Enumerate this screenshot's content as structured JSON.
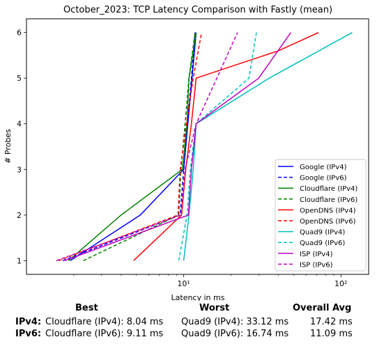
{
  "chart_data": {
    "type": "line",
    "title": "October_2023: TCP Latency Comparison with Fastly (mean)",
    "xlabel": "Latency in ms",
    "ylabel": "# Probes",
    "xscale": "log",
    "xlim": [
      1,
      150
    ],
    "ylim": [
      0.7,
      6.3
    ],
    "x_ticks": [
      {
        "value": 10,
        "label": "10¹"
      },
      {
        "value": 100,
        "label": "10²"
      }
    ],
    "y_ticks": [
      1,
      2,
      3,
      4,
      5,
      6
    ],
    "legend_position": "lower-right",
    "series": [
      {
        "name": "Google (IPv4)",
        "color": "#0000ff",
        "dash": "solid",
        "x": [
          1.9,
          5.3,
          10.0,
          11.3,
          12.0
        ],
        "y": [
          1,
          2,
          3,
          5,
          6
        ]
      },
      {
        "name": "Google (IPv6)",
        "color": "#0000ff",
        "dash": "dashed",
        "x": [
          1.7,
          9.5,
          10.0,
          11.2,
          11.8
        ],
        "y": [
          1,
          2,
          3,
          5,
          6
        ]
      },
      {
        "name": "Cloudflare (IPv4)",
        "color": "#008000",
        "dash": "solid",
        "x": [
          1.85,
          4.0,
          9.8,
          10.5,
          10.8,
          12.0
        ],
        "y": [
          1,
          2,
          3,
          4,
          5,
          6
        ]
      },
      {
        "name": "Cloudflare (IPv6)",
        "color": "#008000",
        "dash": "dashed",
        "x": [
          2.3,
          9.3,
          9.6,
          10.2,
          10.8,
          11.8
        ],
        "y": [
          1,
          2,
          3,
          4,
          5,
          6
        ]
      },
      {
        "name": "OpenDNS (IPv4)",
        "color": "#ff0000",
        "dash": "solid",
        "x": [
          4.8,
          9.7,
          10.3,
          11.2,
          12.0,
          40.0,
          72.0
        ],
        "y": [
          1,
          2,
          3,
          4,
          5,
          5.6,
          6
        ]
      },
      {
        "name": "OpenDNS (IPv6)",
        "color": "#ff0000",
        "dash": "dashed",
        "x": [
          1.6,
          9.2,
          9.5,
          10.4,
          11.5,
          13.0
        ],
        "y": [
          1,
          2,
          3,
          4,
          5,
          6
        ]
      },
      {
        "name": "Quad9 (IPv4)",
        "color": "#00bfbf",
        "dash": "solid",
        "x": [
          10.0,
          10.8,
          11.5,
          12.0,
          35.0,
          118.0
        ],
        "y": [
          1,
          2,
          3,
          4,
          5,
          6
        ]
      },
      {
        "name": "Quad9 (IPv6)",
        "color": "#00bfbf",
        "dash": "dashed",
        "x": [
          9.3,
          10.5,
          11.0,
          12.0,
          26.0,
          29.0
        ],
        "y": [
          1,
          2,
          3,
          4,
          5,
          6
        ]
      },
      {
        "name": "ISP (IPv4)",
        "color": "#bf00bf",
        "dash": "solid",
        "x": [
          1.75,
          10.7,
          11.2,
          12.0,
          30.0,
          48.0
        ],
        "y": [
          1,
          2,
          3,
          4,
          5,
          6
        ]
      },
      {
        "name": "ISP (IPv6)",
        "color": "#bf00bf",
        "dash": "dashed",
        "x": [
          1.55,
          9.6,
          10.2,
          12.0,
          22.0
        ],
        "y": [
          1,
          2,
          3,
          4,
          6
        ]
      }
    ]
  },
  "summary": {
    "headers": {
      "best": "Best",
      "worst": "Worst",
      "avg": "Overall Avg"
    },
    "rows": [
      {
        "label": "IPv4:",
        "best": "Cloudflare (IPv4): 8.04 ms",
        "worst": "Quad9 (IPv4): 33.12 ms",
        "avg": "17.42 ms"
      },
      {
        "label": "IPv6:",
        "best": "Cloudflare (IPv6): 9.11 ms",
        "worst": "Quad9 (IPv6): 16.74 ms",
        "avg": "11.09 ms"
      }
    ]
  }
}
